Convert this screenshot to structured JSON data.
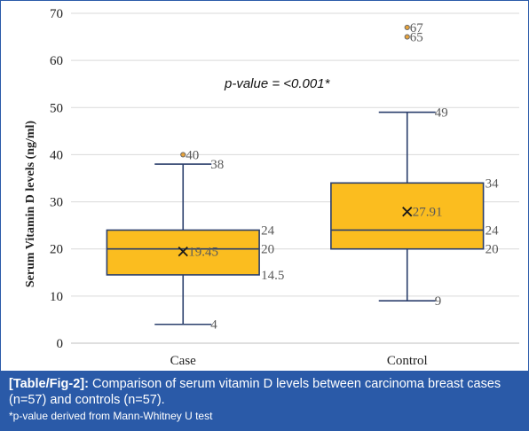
{
  "chart_data": {
    "type": "box",
    "ylabel": "Serum Vitamin D levels (ng/ml)",
    "ylim": [
      0,
      70
    ],
    "yticks": [
      "0",
      "10",
      "20",
      "30",
      "40",
      "50",
      "60",
      "70"
    ],
    "annotation": "p-value = <0.001*",
    "categories": [
      "Case",
      "Control"
    ],
    "boxes": [
      {
        "category": "Case",
        "min": 4,
        "q1": 14.5,
        "median": 20,
        "q3": 24,
        "max": 38,
        "mean": 19.45,
        "outliers": [
          40
        ],
        "labels": {
          "min": "4",
          "q1": "14.5",
          "median": "20",
          "q3": "24",
          "max": "38",
          "mean": "19.45",
          "outliers": [
            "40"
          ]
        }
      },
      {
        "category": "Control",
        "min": 9,
        "q1": 20,
        "median": 24,
        "q3": 34,
        "max": 49,
        "mean": 27.91,
        "outliers": [
          65,
          67
        ],
        "labels": {
          "min": "9",
          "q1": "20",
          "median": "24",
          "q3": "34",
          "max": "49",
          "mean": "27.91",
          "outliers": [
            "65",
            "67"
          ]
        }
      }
    ],
    "colors": {
      "box_fill": "#fbbd1f",
      "box_stroke": "#2b3f6c",
      "whisker": "#2b3f6c",
      "outlier_fill": "#e8a33a",
      "outlier_stroke": "#6b6b6b",
      "grid": "#d9d9d9"
    },
    "grid": true
  },
  "caption": {
    "ref": "[Table/Fig-2]:",
    "text": "Comparison of serum vitamin D levels between carcinoma breast cases (n=57) and controls (n=57).",
    "note": "*p-value derived from Mann-Whitney U test",
    "background": "#2a5aa8"
  }
}
